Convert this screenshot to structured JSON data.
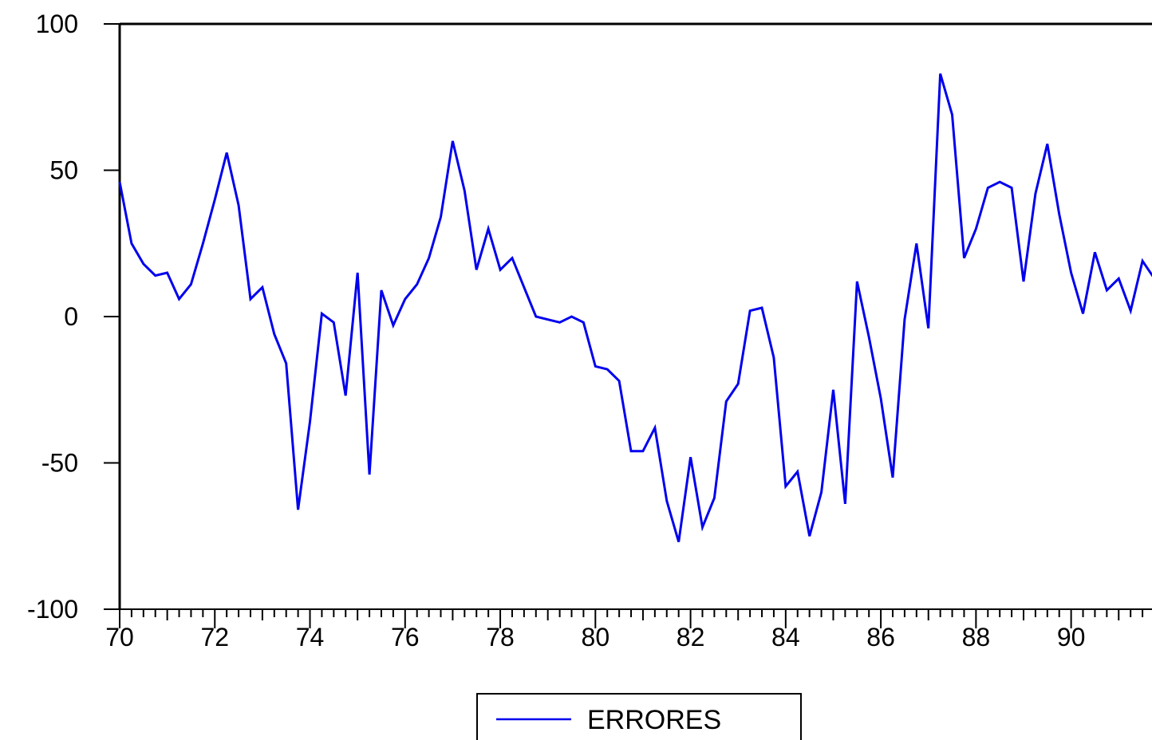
{
  "chart_data": {
    "type": "line",
    "title": "",
    "xlabel": "",
    "ylabel": "",
    "xlim": [
      70,
      91.7
    ],
    "ylim": [
      -100,
      100
    ],
    "x_tick_labels": [
      "70",
      "72",
      "74",
      "76",
      "78",
      "80",
      "82",
      "84",
      "86",
      "88",
      "90"
    ],
    "y_tick_labels": [
      "100",
      "50",
      "0",
      "-50",
      "-100"
    ],
    "x_ticks": [
      70,
      72,
      74,
      76,
      78,
      80,
      82,
      84,
      86,
      88,
      90
    ],
    "y_ticks": [
      100,
      50,
      0,
      -50,
      -100
    ],
    "minor_x_step": 0.25,
    "grid": false,
    "legend_position": "bottom-center",
    "series": [
      {
        "name": "ERRORES",
        "color": "#0000ee",
        "x": [
          70.0,
          70.25,
          70.5,
          70.75,
          71.0,
          71.25,
          71.5,
          71.75,
          72.0,
          72.25,
          72.5,
          72.75,
          73.0,
          73.25,
          73.5,
          73.75,
          74.0,
          74.25,
          74.5,
          74.75,
          75.0,
          75.25,
          75.5,
          75.75,
          76.0,
          76.25,
          76.5,
          76.75,
          77.0,
          77.25,
          77.5,
          77.75,
          78.0,
          78.25,
          78.5,
          78.75,
          79.0,
          79.25,
          79.5,
          79.75,
          80.0,
          80.25,
          80.5,
          80.75,
          81.0,
          81.25,
          81.5,
          81.75,
          82.0,
          82.25,
          82.5,
          82.75,
          83.0,
          83.25,
          83.5,
          83.75,
          84.0,
          84.25,
          84.5,
          84.75,
          85.0,
          85.25,
          85.5,
          85.75,
          86.0,
          86.25,
          86.5,
          86.75,
          87.0,
          87.25,
          87.5,
          87.75,
          88.0,
          88.25,
          88.5,
          88.75,
          89.0,
          89.25,
          89.5,
          89.75,
          90.0,
          90.25,
          90.5,
          90.75,
          91.0,
          91.25,
          91.5,
          91.75
        ],
        "values": [
          46,
          25,
          18,
          14,
          15,
          6,
          11,
          25,
          40,
          56,
          38,
          6,
          10,
          -6,
          -16,
          -66,
          -36,
          1,
          -2,
          -27,
          15,
          -54,
          9,
          -3,
          6,
          11,
          20,
          34,
          60,
          43,
          16,
          30,
          16,
          20,
          10,
          0,
          -1,
          -2,
          0,
          -2,
          -17,
          -18,
          -22,
          -46,
          -46,
          -38,
          -63,
          -77,
          -48,
          -72,
          -62,
          -29,
          -23,
          2,
          3,
          -14,
          -58,
          -53,
          -75,
          -60,
          -25,
          -64,
          12,
          -7,
          -28,
          -55,
          -1,
          25,
          -4,
          83,
          69,
          20,
          30,
          44,
          46,
          44,
          12,
          42,
          59,
          35,
          15,
          1,
          22,
          9,
          13,
          2,
          19,
          13
        ]
      }
    ]
  }
}
